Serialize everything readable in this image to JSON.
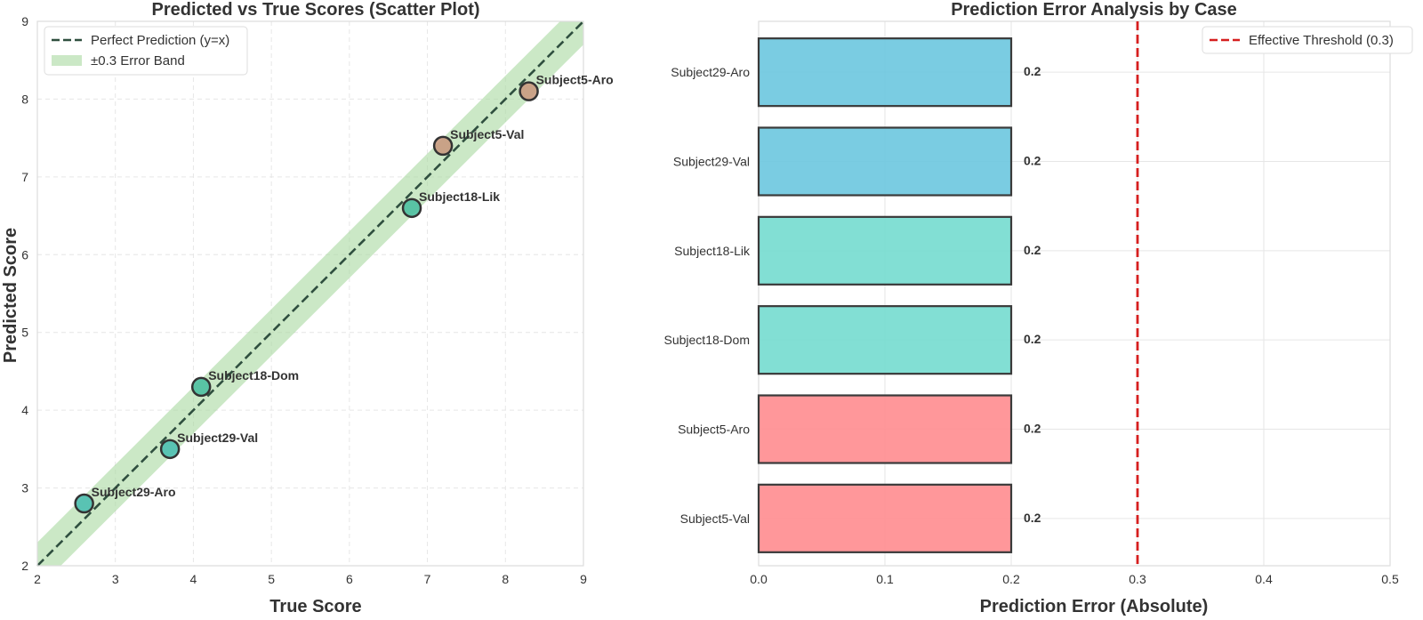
{
  "chart_data": [
    {
      "type": "scatter",
      "title": "Predicted vs True Scores (Scatter Plot)",
      "xlabel": "True Score",
      "ylabel": "Predicted Score",
      "xlim": [
        2,
        9
      ],
      "ylim": [
        2,
        9
      ],
      "xticks": [
        "2",
        "3",
        "4",
        "5",
        "6",
        "7",
        "8",
        "9"
      ],
      "yticks": [
        "2",
        "3",
        "4",
        "5",
        "6",
        "7",
        "8",
        "9"
      ],
      "grid": true,
      "error_band": 0.3,
      "legend": {
        "placement": "top-left",
        "entries": [
          "Perfect Prediction (y=x)",
          "±0.3 Error Band"
        ]
      },
      "points": [
        {
          "label": "Subject29-Aro",
          "x": 2.6,
          "y": 2.8,
          "color": "#4dbfb0"
        },
        {
          "label": "Subject29-Val",
          "x": 3.7,
          "y": 3.5,
          "color": "#4dbfb0"
        },
        {
          "label": "Subject18-Dom",
          "x": 4.1,
          "y": 4.3,
          "color": "#4dbfa0"
        },
        {
          "label": "Subject18-Lik",
          "x": 6.8,
          "y": 6.6,
          "color": "#4dbfa0"
        },
        {
          "label": "Subject5-Val",
          "x": 7.2,
          "y": 7.4,
          "color": "#c99a80"
        },
        {
          "label": "Subject5-Aro",
          "x": 8.3,
          "y": 8.1,
          "color": "#c99a80"
        }
      ],
      "colors": {
        "line": "#2f4f3f",
        "band": "#a8d8a0"
      }
    },
    {
      "type": "bar",
      "orientation": "horizontal",
      "title": "Prediction Error Analysis by Case",
      "xlabel": "Prediction Error (Absolute)",
      "xlim": [
        0,
        0.5
      ],
      "xticks": [
        "0.0",
        "0.1",
        "0.2",
        "0.3",
        "0.4",
        "0.5"
      ],
      "categories": [
        "Subject29-Aro",
        "Subject29-Val",
        "Subject18-Lik",
        "Subject18-Dom",
        "Subject5-Aro",
        "Subject5-Val"
      ],
      "values": [
        0.2,
        0.2,
        0.2,
        0.2,
        0.2,
        0.2
      ],
      "value_labels": [
        "0.2",
        "0.2",
        "0.2",
        "0.2",
        "0.2",
        "0.2"
      ],
      "bar_colors": [
        "#6cc6df",
        "#6cc6df",
        "#74dccf",
        "#74dccf",
        "#ff8c8f",
        "#ff8c8f"
      ],
      "threshold": {
        "value": 0.3,
        "label": "Effective Threshold (0.3)",
        "color": "#d61f1f"
      },
      "legend": {
        "placement": "top-right"
      },
      "grid": true
    }
  ]
}
